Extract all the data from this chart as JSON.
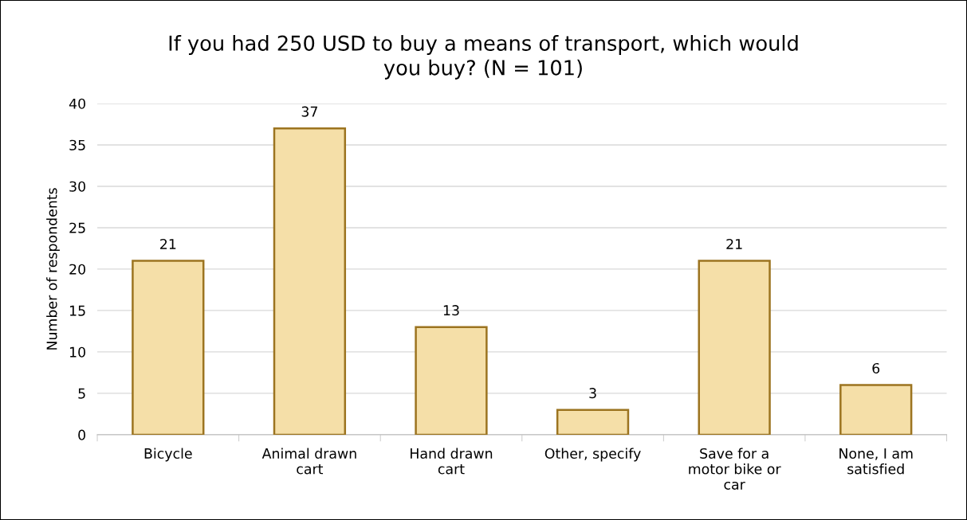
{
  "chart_data": {
    "type": "bar",
    "title": "If you had 250 USD to buy a means of transport, which would\nyou buy? (N = 101)",
    "ylabel": "Number of respondents",
    "categories": [
      "Bicycle",
      "Animal drawn\ncart",
      "Hand drawn\ncart",
      "Other, specify",
      "Save for a\nmotor bike or\ncar",
      "None, I am\nsatisfied"
    ],
    "values": [
      21,
      37,
      13,
      3,
      21,
      6
    ],
    "color": "#f5dfa8",
    "ylim": [
      0,
      40
    ],
    "yticks": [
      0,
      5,
      10,
      15,
      20,
      25,
      30,
      35,
      40
    ],
    "grid": "y",
    "data_labels": true
  }
}
